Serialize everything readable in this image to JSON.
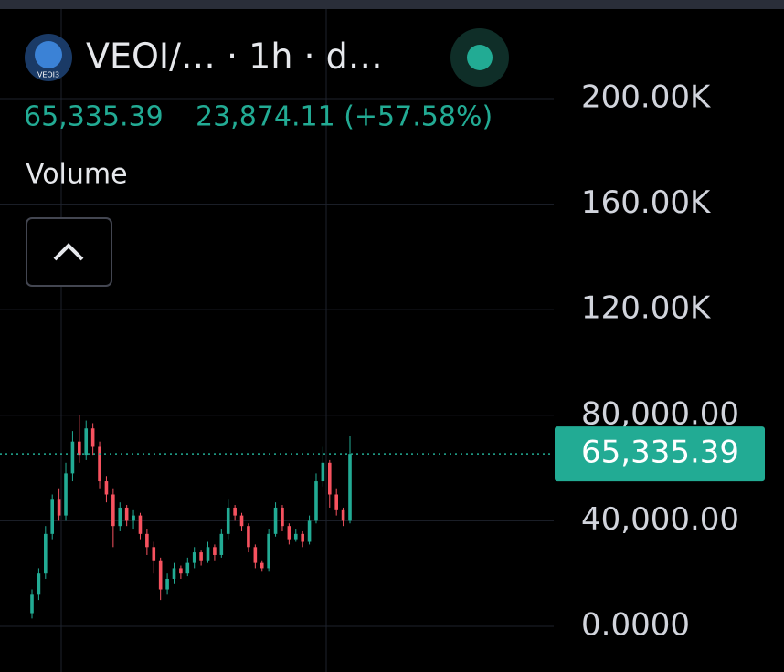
{
  "header": {
    "symbol": "VEOI/… · 1h · d…",
    "logo_text": "VEOI3",
    "last_price": "65,335.39",
    "change": "23,874.11 (+57.58%)",
    "volume_label": "Volume"
  },
  "chart_data": {
    "type": "candlestick",
    "up_color": "#22ab94",
    "down_color": "#f7525f",
    "grid": true,
    "ylim": [
      -17300,
      233900
    ],
    "yticks": [
      {
        "value": 0,
        "label": "0.0000"
      },
      {
        "value": 40000,
        "label": "40,000.00"
      },
      {
        "value": 80000,
        "label": "80,000.00"
      },
      {
        "value": 120000,
        "label": "120.00K"
      },
      {
        "value": 160000,
        "label": "160.00K"
      },
      {
        "value": 200000,
        "label": "200.00K"
      }
    ],
    "price_line": {
      "value": 65335.39,
      "label": "65,335.39"
    },
    "open": [
      5000,
      12000,
      20000,
      35000,
      48000,
      42000,
      58000,
      70000,
      65000,
      75000,
      68000,
      55000,
      50000,
      38000,
      45000,
      40000,
      42000,
      35000,
      30000,
      25000,
      14000,
      18000,
      22000,
      20000,
      24000,
      28000,
      25000,
      30000,
      27000,
      35000,
      45000,
      42000,
      38000,
      30000,
      24000,
      22000,
      35000,
      45000,
      38000,
      33000,
      35000,
      32000,
      40000,
      55000,
      62000,
      50000,
      44000,
      40000
    ],
    "high": [
      14000,
      22000,
      38000,
      50000,
      52000,
      62000,
      74000,
      80000,
      78000,
      77000,
      70000,
      57000,
      52000,
      47000,
      46000,
      44000,
      43000,
      37000,
      32000,
      26000,
      20000,
      24000,
      23000,
      26000,
      30000,
      29000,
      32000,
      31000,
      37000,
      48000,
      46000,
      43000,
      39000,
      31000,
      25000,
      37000,
      47000,
      46000,
      39000,
      37000,
      36000,
      42000,
      58000,
      68000,
      63000,
      52000,
      45000,
      72000
    ],
    "low": [
      3000,
      10000,
      18000,
      33000,
      40000,
      40000,
      55000,
      62000,
      63000,
      65000,
      52000,
      47000,
      30000,
      36000,
      38000,
      37000,
      33000,
      27000,
      20000,
      10000,
      12000,
      16000,
      18000,
      19000,
      22000,
      23000,
      24000,
      25000,
      26000,
      33000,
      40000,
      36000,
      28000,
      22000,
      21000,
      21000,
      34000,
      36000,
      31000,
      32000,
      30000,
      31000,
      39000,
      53000,
      45000,
      42000,
      38000,
      39000
    ],
    "close": [
      12000,
      20000,
      35000,
      48000,
      42000,
      58000,
      70000,
      65000,
      75000,
      68000,
      55000,
      50000,
      38000,
      45000,
      40000,
      42000,
      35000,
      30000,
      25000,
      14000,
      18000,
      22000,
      20000,
      24000,
      28000,
      25000,
      30000,
      27000,
      35000,
      45000,
      42000,
      38000,
      30000,
      24000,
      22000,
      35000,
      45000,
      38000,
      33000,
      35000,
      32000,
      40000,
      55000,
      62000,
      50000,
      44000,
      40000,
      65335.39
    ]
  }
}
